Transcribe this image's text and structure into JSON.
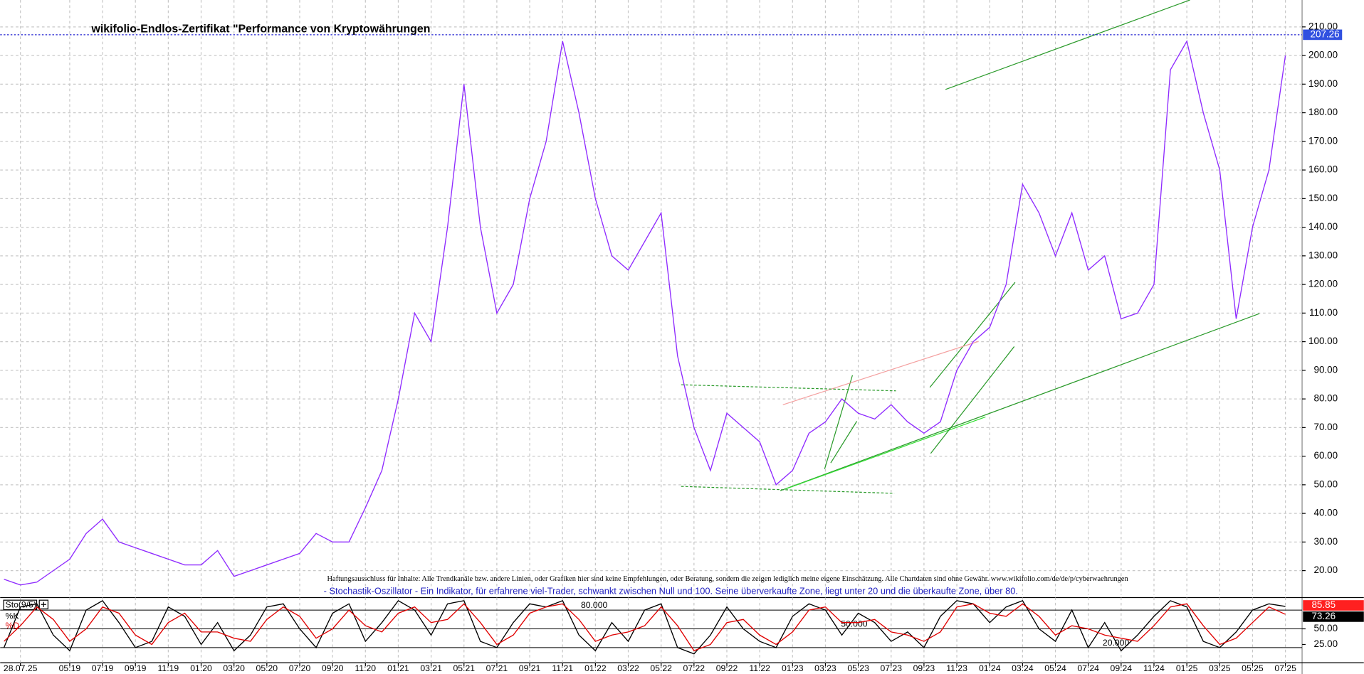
{
  "chart_data": [
    {
      "type": "line",
      "title": "wikifolio-Endlos-Zertifikat \"Performance von Kryptowährungen",
      "disclaimer": "Haftungsausschluss für Inhalte: Alle Trendkanäle bzw. andere Linien, oder Grafiken hier sind keine Empfehlungen, oder Beratung, sondern die zeigen lediglich meine eigene Einschätzung. Alle Chartdaten sind ohne Gewähr.  www.wikifolio.com/de/de/p/cyberwaehrungen",
      "categories": [
        null,
        "28.07.25",
        null,
        null,
        "05:19",
        null,
        "07:19",
        null,
        "09:19",
        null,
        "11:19",
        null,
        "01:20",
        null,
        "03:20",
        null,
        "05:20",
        null,
        "07:20",
        null,
        "09:20",
        null,
        "11:20",
        null,
        "01:21",
        null,
        "03:21",
        null,
        "05:21",
        null,
        "07:21",
        null,
        "09:21",
        null,
        "11:21",
        null,
        "01:22",
        null,
        "03:22",
        null,
        "05:22",
        null,
        "07:22",
        null,
        "09:22",
        null,
        "11:22",
        null,
        "01:23",
        null,
        "03:23",
        null,
        "05:23",
        null,
        "07:23",
        null,
        "09:23",
        null,
        "11:23",
        null,
        "01:24",
        null,
        "03:24",
        null,
        "05:24",
        null,
        "07:24",
        null,
        "09:24",
        null,
        "11:24",
        null,
        "01:25",
        null,
        "03:25",
        null,
        "05:25",
        null,
        "07:25"
      ],
      "series": [
        {
          "color": "#8f2bff",
          "values": [
            17,
            15,
            16,
            20,
            24,
            33,
            38,
            30,
            28,
            26,
            24,
            22,
            22,
            27,
            18,
            20,
            22,
            24,
            26,
            33,
            30,
            30,
            42,
            55,
            80,
            110,
            100,
            140,
            190,
            140,
            110,
            120,
            150,
            170,
            205,
            180,
            150,
            130,
            125,
            135,
            145,
            95,
            70,
            55,
            75,
            70,
            65,
            50,
            55,
            68,
            72,
            80,
            75,
            73,
            78,
            72,
            68,
            72,
            90,
            100,
            105,
            120,
            155,
            145,
            130,
            145,
            125,
            130,
            108,
            110,
            120,
            195,
            205,
            180,
            160,
            108,
            140,
            160,
            200
          ]
        }
      ],
      "last_value": 207.26,
      "ylim": [
        11.5,
        219.4
      ],
      "yticks": [
        {
          "value": 20,
          "label": "20.00"
        },
        {
          "value": 30,
          "label": "30.00"
        },
        {
          "value": 40,
          "label": "40.00"
        },
        {
          "value": 50,
          "label": "50.00"
        },
        {
          "value": 60,
          "label": "60.00"
        },
        {
          "value": 70,
          "label": "70.00"
        },
        {
          "value": 80,
          "label": "80.00"
        },
        {
          "value": 90,
          "label": "90.00"
        },
        {
          "value": 100,
          "label": "100.00"
        },
        {
          "value": 110,
          "label": "110.00"
        },
        {
          "value": 120,
          "label": "120.00"
        },
        {
          "value": 130,
          "label": "130.00"
        },
        {
          "value": 140,
          "label": "140.00"
        },
        {
          "value": 150,
          "label": "150.00"
        },
        {
          "value": 160,
          "label": "160.00"
        },
        {
          "value": 170,
          "label": "170.00"
        },
        {
          "value": 180,
          "label": "180.00"
        },
        {
          "value": 190,
          "label": "190.00"
        },
        {
          "value": 200,
          "label": "200.00"
        },
        {
          "value": 210,
          "label": "210.00"
        }
      ],
      "grid": true
    },
    {
      "type": "line",
      "title": "Sto(9/5)",
      "description": "- Stochastik-Oszillator - Ein Indikator, für erfahrene viel-Trader, schwankt zwischen Null und 100. Seine überverkaufte Zone, liegt unter 20 und die überkaufte Zone, über 80.",
      "series": [
        {
          "name": "%K",
          "color": "#000000",
          "values": [
            20,
            85,
            90,
            40,
            15,
            80,
            95,
            60,
            20,
            30,
            85,
            70,
            25,
            60,
            15,
            40,
            85,
            90,
            50,
            20,
            75,
            90,
            30,
            60,
            95,
            80,
            40,
            90,
            95,
            30,
            20,
            60,
            90,
            85,
            95,
            40,
            15,
            60,
            30,
            80,
            90,
            20,
            10,
            40,
            85,
            50,
            30,
            20,
            70,
            90,
            80,
            40,
            75,
            60,
            30,
            45,
            20,
            70,
            95,
            90,
            60,
            85,
            95,
            50,
            30,
            80,
            20,
            60,
            15,
            40,
            70,
            95,
            85,
            30,
            20,
            45,
            80,
            90,
            85.85
          ]
        },
        {
          "name": "%D",
          "color": "#e00000",
          "values": [
            30,
            55,
            85,
            65,
            30,
            50,
            85,
            75,
            40,
            25,
            60,
            75,
            45,
            45,
            35,
            30,
            65,
            85,
            70,
            35,
            50,
            80,
            55,
            45,
            75,
            85,
            60,
            65,
            90,
            60,
            25,
            40,
            75,
            85,
            90,
            65,
            30,
            40,
            45,
            55,
            85,
            55,
            15,
            25,
            60,
            65,
            40,
            25,
            45,
            80,
            85,
            60,
            60,
            65,
            45,
            40,
            30,
            45,
            85,
            90,
            75,
            70,
            90,
            70,
            40,
            55,
            50,
            40,
            35,
            30,
            55,
            85,
            90,
            55,
            25,
            35,
            60,
            85,
            73.26
          ]
        }
      ],
      "levels": [
        {
          "value": 80,
          "label": "80.000"
        },
        {
          "value": 50,
          "label": "50.000"
        },
        {
          "value": 20,
          "label": "20.000"
        }
      ],
      "ylim": [
        0,
        100
      ],
      "yticks": [
        {
          "value": 50,
          "label": "50.00"
        },
        {
          "value": 25,
          "label": "25.00"
        }
      ]
    }
  ]
}
